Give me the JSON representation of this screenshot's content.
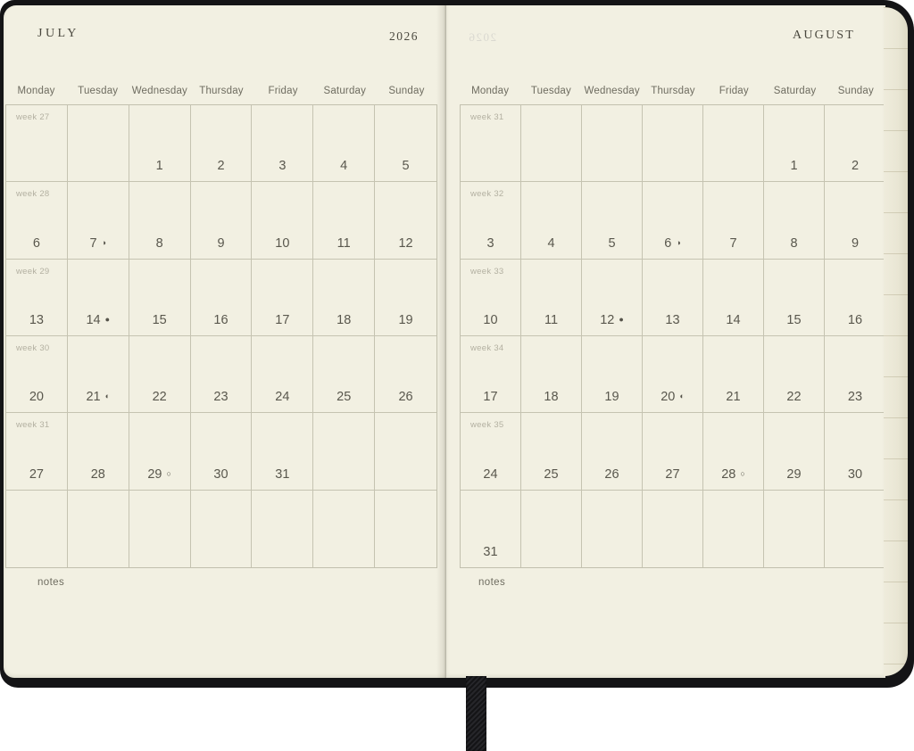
{
  "day_headers": [
    "Monday",
    "Tuesday",
    "Wednesday",
    "Thursday",
    "Friday",
    "Saturday",
    "Sunday"
  ],
  "left_page": {
    "month": "JULY",
    "year": "2026",
    "notes_label": "notes",
    "weeks": [
      {
        "label": "week 27",
        "days": [
          "",
          "",
          "1",
          "2",
          "3",
          "4",
          "5"
        ]
      },
      {
        "label": "week 28",
        "days": [
          "6",
          "7",
          "8",
          "9",
          "10",
          "11",
          "12"
        ]
      },
      {
        "label": "week 29",
        "days": [
          "13",
          "14",
          "15",
          "16",
          "17",
          "18",
          "19"
        ]
      },
      {
        "label": "week 30",
        "days": [
          "20",
          "21",
          "22",
          "23",
          "24",
          "25",
          "26"
        ]
      },
      {
        "label": "week 31",
        "days": [
          "27",
          "28",
          "29",
          "30",
          "31",
          "",
          ""
        ]
      },
      {
        "label": "",
        "days": [
          "",
          "",
          "",
          "",
          "",
          "",
          ""
        ]
      }
    ],
    "moons": {
      "7": {
        "glyph": "◑",
        "phase": "last-quarter"
      },
      "14": {
        "glyph": "●",
        "phase": "new-moon"
      },
      "21": {
        "glyph": "◐",
        "phase": "first-quarter"
      },
      "29": {
        "glyph": "○",
        "phase": "full-moon"
      }
    }
  },
  "right_page": {
    "month": "AUGUST",
    "notes_label": "notes",
    "show_through": "2026",
    "weeks": [
      {
        "label": "week 31",
        "days": [
          "",
          "",
          "",
          "",
          "",
          "1",
          "2"
        ]
      },
      {
        "label": "week 32",
        "days": [
          "3",
          "4",
          "5",
          "6",
          "7",
          "8",
          "9"
        ]
      },
      {
        "label": "week 33",
        "days": [
          "10",
          "11",
          "12",
          "13",
          "14",
          "15",
          "16"
        ]
      },
      {
        "label": "week 34",
        "days": [
          "17",
          "18",
          "19",
          "20",
          "21",
          "22",
          "23"
        ]
      },
      {
        "label": "week 35",
        "days": [
          "24",
          "25",
          "26",
          "27",
          "28",
          "29",
          "30"
        ]
      },
      {
        "label": "",
        "days": [
          "31",
          "",
          "",
          "",
          "",
          "",
          ""
        ]
      }
    ],
    "moons": {
      "6": {
        "glyph": "◑",
        "phase": "last-quarter"
      },
      "12": {
        "glyph": "●",
        "phase": "new-moon"
      },
      "20": {
        "glyph": "◐",
        "phase": "first-quarter"
      },
      "28": {
        "glyph": "○",
        "phase": "full-moon"
      }
    }
  },
  "moon_legend": {
    "new_moon": "●",
    "full_moon": "○",
    "first_quarter": "◐",
    "last_quarter": "◑"
  },
  "colors": {
    "page": "#f2f0e2",
    "cover": "#141416",
    "grid_line": "#c2c0ae",
    "date_text": "#59574d",
    "week_label_text": "#b3b0a1",
    "header_text": "#6e6c60"
  }
}
